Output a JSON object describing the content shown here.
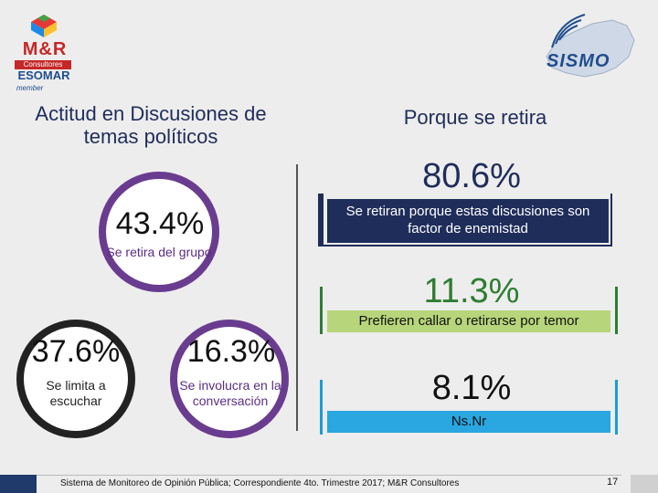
{
  "logos": {
    "mr_brand": "M&R",
    "mr_sub": "Consultores",
    "esomar": "ESOMAR",
    "member": "member",
    "sismo": "SISMO"
  },
  "left": {
    "title": "Actitud en Discusiones de temas políticos",
    "main": {
      "value": "43.4%",
      "label": "Se retira del grupo"
    },
    "left_item": {
      "value": "37.6%",
      "label": "Se limita a escuchar"
    },
    "right_item": {
      "value": "16.3%",
      "label": "Se involucra en la conversación"
    }
  },
  "right": {
    "title": "Porque se retira",
    "r1": {
      "value": "80.6%",
      "label": "Se retiran porque estas discusiones son factor de enemistad"
    },
    "r2": {
      "value": "11.3%",
      "label": "Prefieren callar o retirarse por temor"
    },
    "r3": {
      "value": "8.1%",
      "label": "Ns.Nr"
    }
  },
  "footer": {
    "text": "Sistema de Monitoreo de Opinión Pública; Correspondiente 4to. Trimestre 2017; M&R Consultores",
    "page": "17"
  },
  "colors": {
    "navy": "#1f2d5a",
    "purple": "#6a3c8f",
    "green": "#2e7d32",
    "light_green": "#b7d57a",
    "blue": "#2aa6e0"
  }
}
